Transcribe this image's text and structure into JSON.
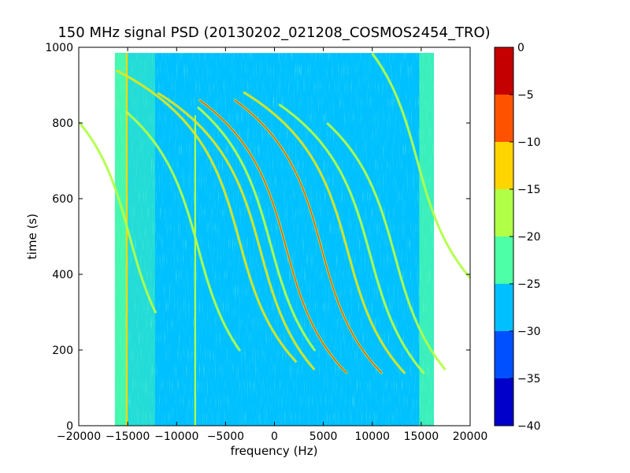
{
  "chart_data": {
    "type": "heatmap",
    "title": "150 MHz signal PSD (20130202_021208_COSMOS2454_TRO)",
    "xlabel": "frequency (Hz)",
    "ylabel": "time (s)",
    "xlim": [
      -20000,
      20000
    ],
    "ylim": [
      0,
      1000
    ],
    "xticks": [
      -20000,
      -15000,
      -10000,
      -5000,
      0,
      5000,
      10000,
      15000,
      20000
    ],
    "xtick_labels": [
      "−20000",
      "−15000",
      "−10000",
      "−5000",
      "0",
      "5000",
      "10000",
      "15000",
      "20000"
    ],
    "yticks": [
      0,
      200,
      400,
      600,
      800,
      1000
    ],
    "ytick_labels": [
      "0",
      "200",
      "400",
      "600",
      "800",
      "1000"
    ],
    "data_extent": {
      "x": [
        -16300,
        16300
      ],
      "y": [
        0,
        985
      ]
    },
    "background_level_db": -27,
    "band_edge_level_db": -22,
    "colorbar": {
      "levels": [
        -40,
        -35,
        -30,
        -25,
        -20,
        -15,
        -10,
        -5,
        0
      ],
      "tick_labels": [
        "−40",
        "−35",
        "−30",
        "−25",
        "−20",
        "−15",
        "−10",
        "−5",
        "0"
      ],
      "colors": [
        "#0000c8",
        "#0050ff",
        "#00c0ff",
        "#4dffa6",
        "#b2ff48",
        "#ffd500",
        "#ff5200",
        "#c50000"
      ]
    },
    "vertical_lines": [
      {
        "freq": -15100,
        "t_start": 0,
        "t_end": 985,
        "level_db": -14
      },
      {
        "freq": -8100,
        "t_start": 0,
        "t_end": 820,
        "level_db": -17
      }
    ],
    "doppler_tracks": [
      {
        "t_center": 470,
        "f_center": -7800,
        "t_start": 200,
        "t_end": 830,
        "level_db": -16
      },
      {
        "t_center": 490,
        "f_center": -3600,
        "t_start": 170,
        "t_end": 940,
        "level_db": -15
      },
      {
        "t_center": 460,
        "f_center": -1400,
        "t_start": 150,
        "t_end": 880,
        "level_db": -14
      },
      {
        "t_center": 470,
        "f_center": 1200,
        "t_start": 140,
        "t_end": 860,
        "level_db": -8
      },
      {
        "t_center": 480,
        "f_center": -400,
        "t_start": 200,
        "t_end": 840,
        "level_db": -16
      },
      {
        "t_center": 470,
        "f_center": 4800,
        "t_start": 140,
        "t_end": 860,
        "level_db": -8
      },
      {
        "t_center": 460,
        "f_center": 7500,
        "t_start": 140,
        "t_end": 880,
        "level_db": -13
      },
      {
        "t_center": 450,
        "f_center": 9800,
        "t_start": 140,
        "t_end": 850,
        "level_db": -16
      },
      {
        "t_center": 450,
        "f_center": 12300,
        "t_start": 150,
        "t_end": 800,
        "level_db": -18
      },
      {
        "t_center": 700,
        "f_center": 14600,
        "t_start": 350,
        "t_end": 985,
        "level_db": -17
      },
      {
        "t_center": 500,
        "f_center": -14800,
        "t_start": 300,
        "t_end": 800,
        "level_db": -16
      }
    ]
  }
}
